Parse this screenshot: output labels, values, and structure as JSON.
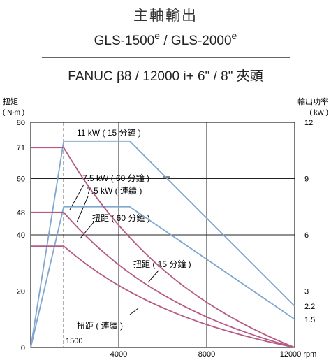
{
  "title": "主軸輸出",
  "subtitle_model_a": "GLS-1500",
  "subtitle_model_a_sup": "e",
  "subtitle_sep": " / ",
  "subtitle_model_b": "GLS-2000",
  "subtitle_model_b_sup": "e",
  "spec_line": "FANUC β8 / 12000 i+ 6\" / 8\" 夾頭",
  "chart_data": {
    "type": "line",
    "ylabel_left": "扭矩",
    "ylabel_left_unit": "( N-m )",
    "ylabel_right": "輸出功率",
    "ylabel_right_unit": "( kW )",
    "x_unit": "rpm",
    "xlim": [
      0,
      12000
    ],
    "ylim_left": [
      0,
      80
    ],
    "ylim_right": [
      0,
      12
    ],
    "x_ticks": [
      {
        "value": 1500,
        "label": "1500"
      },
      {
        "value": 4000,
        "label": "4000"
      },
      {
        "value": 8000,
        "label": "8000"
      },
      {
        "value": 12000,
        "label": "12000 rpm"
      }
    ],
    "y_ticks_left": [
      {
        "value": 0,
        "label": "0"
      },
      {
        "value": 20,
        "label": "20"
      },
      {
        "value": 40,
        "label": "40"
      },
      {
        "value": 48,
        "label": "48"
      },
      {
        "value": 60,
        "label": "60"
      },
      {
        "value": 71,
        "label": "71"
      },
      {
        "value": 80,
        "label": "80"
      }
    ],
    "y_ticks_right": [
      {
        "value": 1.5,
        "label": "1.5"
      },
      {
        "value": 2.2,
        "label": "2.2"
      },
      {
        "value": 3,
        "label": "3"
      },
      {
        "value": 6,
        "label": "6"
      },
      {
        "value": 9,
        "label": "9"
      },
      {
        "value": 12,
        "label": "12"
      }
    ],
    "grid": true,
    "power_series": [
      {
        "axis": "right",
        "color": "#7fa7cf",
        "x": [
          0,
          1500,
          4500,
          12000
        ],
        "y": [
          0,
          11,
          11,
          2.2
        ]
      },
      {
        "axis": "right",
        "color": "#7fa7cf",
        "x": [
          0,
          1500,
          4500,
          12000
        ],
        "y": [
          0,
          7.5,
          7.5,
          1.5
        ]
      }
    ],
    "torque_series": [
      {
        "axis": "left",
        "color": "#b55a85",
        "x_flat_end": 1500,
        "y_flat": 71,
        "x_end": 12000
      },
      {
        "axis": "left",
        "color": "#b55a85",
        "x_flat_end": 1500,
        "y_flat": 48,
        "x_end": 12000
      },
      {
        "axis": "left",
        "color": "#b55a85",
        "x_flat_end": 1500,
        "y_flat": 36,
        "x_end": 12000
      }
    ],
    "annotations": [
      {
        "text": "11 kW ( 15 分鐘 )"
      },
      {
        "text": "7.5 kW ( 60 分鐘 )"
      },
      {
        "text": "7.5 kW ( 連續 )"
      },
      {
        "text": "扭距 ( 60 分鐘 )"
      },
      {
        "text": "扭距 ( 15 分鐘 )"
      },
      {
        "text": "扭距 ( 連續 )"
      }
    ]
  }
}
